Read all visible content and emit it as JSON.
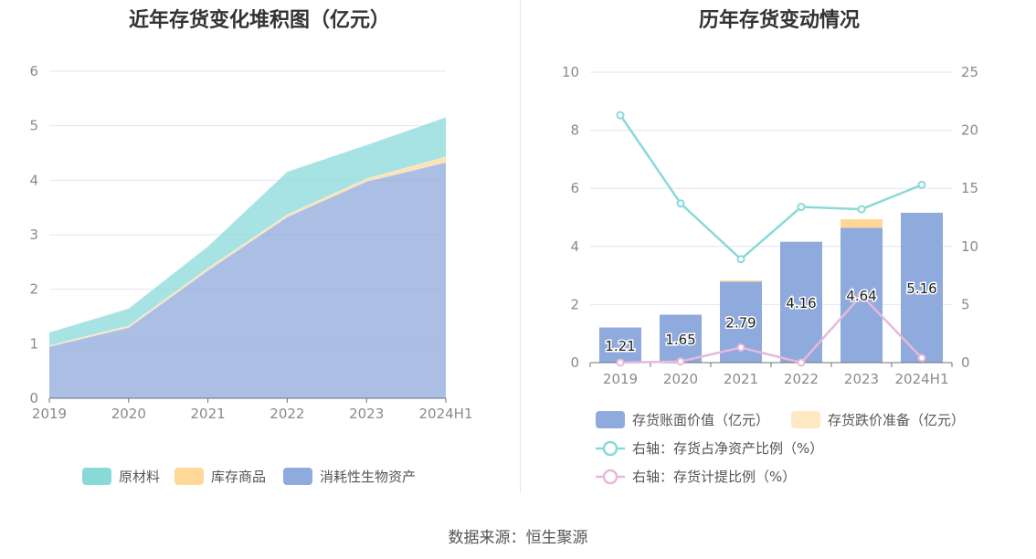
{
  "source_text": "数据来源：恒生聚源",
  "chart_data": [
    {
      "type": "area",
      "stacked": true,
      "title": "近年存货变化堆积图（亿元）",
      "categories": [
        "2019",
        "2020",
        "2021",
        "2022",
        "2023",
        "2024H1"
      ],
      "ylim": [
        0,
        6
      ],
      "yticks": [
        "0",
        "1",
        "2",
        "3",
        "4",
        "5",
        "6"
      ],
      "grid": true,
      "legend_position": "bottom",
      "series": [
        {
          "name": "消耗性生物资产",
          "color": "#8faadc",
          "values": [
            0.95,
            1.3,
            2.35,
            3.33,
            3.98,
            4.33
          ]
        },
        {
          "name": "库存商品",
          "color": "#ffd898",
          "values": [
            0.02,
            0.03,
            0.04,
            0.04,
            0.05,
            0.1
          ]
        },
        {
          "name": "原材料",
          "color": "#8ad9d9",
          "values": [
            0.24,
            0.32,
            0.4,
            0.79,
            0.62,
            0.73
          ]
        }
      ]
    },
    {
      "type": "bar",
      "stacked": true,
      "title": "历年存货变动情况",
      "categories": [
        "2019",
        "2020",
        "2021",
        "2022",
        "2023",
        "2024H1"
      ],
      "ylim": [
        0,
        10
      ],
      "yticks": [
        "0",
        "2",
        "4",
        "6",
        "8",
        "10"
      ],
      "y2lim": [
        0,
        25
      ],
      "y2ticks": [
        "0",
        "5",
        "10",
        "15",
        "20",
        "25"
      ],
      "grid": true,
      "legend_position": "bottom",
      "series": [
        {
          "name": "存货账面价值（亿元）",
          "color": "#8faadc",
          "values": [
            1.21,
            1.65,
            2.79,
            4.16,
            4.64,
            5.16
          ],
          "labels": [
            "1.21",
            "1.65",
            "2.79",
            "4.16",
            "4.64",
            "5.16"
          ]
        },
        {
          "name": "存货跌价准备（亿元）",
          "color": "#ffe8c4",
          "legend_color": "#ffe8c4",
          "bar_color": "#ffd898",
          "values": [
            0,
            0,
            0.04,
            0,
            0.3,
            0
          ]
        }
      ],
      "line_series": [
        {
          "name": "右轴：存货占净资产比例（%）",
          "color": "#8ad9d9",
          "values": [
            21.3,
            13.7,
            8.9,
            13.4,
            13.2,
            15.3
          ]
        },
        {
          "name": "右轴：存货计提比例（%）",
          "color": "#e6b8dc",
          "values": [
            0.0,
            0.1,
            1.3,
            0.0,
            5.8,
            0.4
          ]
        }
      ]
    }
  ]
}
